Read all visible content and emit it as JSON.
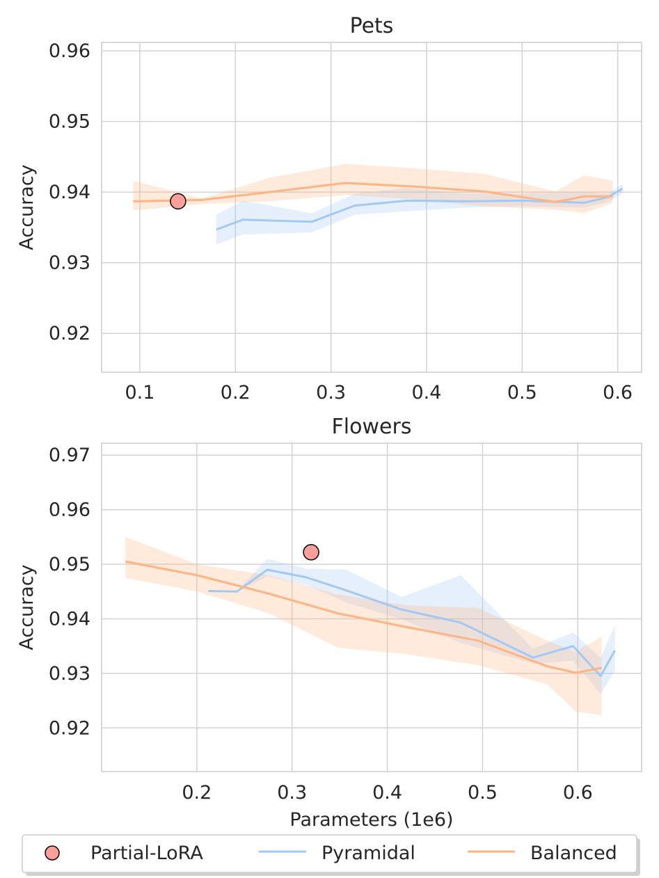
{
  "colors": {
    "pyramidal": "#a1c9f4",
    "balanced": "#ffb482",
    "partial_lora": "#ff9f9b",
    "grid": "#d3d3d3",
    "axes": "#cccccc",
    "text": "#262626"
  },
  "chart_data": [
    {
      "type": "line",
      "title": "Pets",
      "xlabel": "",
      "ylabel": "Accuracy",
      "xlim": [
        0.06,
        0.625
      ],
      "ylim": [
        0.9145,
        0.9612
      ],
      "xticks": [
        0.1,
        0.2,
        0.3,
        0.4,
        0.5,
        0.6
      ],
      "xtick_labels": [
        "0.1",
        "0.2",
        "0.3",
        "0.4",
        "0.5",
        "0.6"
      ],
      "yticks": [
        0.92,
        0.93,
        0.94,
        0.95,
        0.96
      ],
      "ytick_labels": [
        "0.92",
        "0.93",
        "0.94",
        "0.95",
        "0.96"
      ],
      "grid": true,
      "series": [
        {
          "name": "Pyramidal",
          "x": [
            0.18,
            0.208,
            0.28,
            0.325,
            0.38,
            0.44,
            0.5,
            0.565,
            0.59,
            0.605
          ],
          "y": [
            0.9347,
            0.9361,
            0.9358,
            0.9381,
            0.9388,
            0.9387,
            0.9388,
            0.9385,
            0.9393,
            0.9405
          ],
          "band_upper": [
            0.9368,
            0.9388,
            0.937,
            0.9398,
            0.9406,
            0.9398,
            0.9398,
            0.94,
            0.9398,
            0.9412
          ],
          "band_lower": [
            0.9326,
            0.934,
            0.9343,
            0.9368,
            0.9373,
            0.9378,
            0.938,
            0.9378,
            0.9386,
            0.9398
          ]
        },
        {
          "name": "Balanced",
          "x": [
            0.093,
            0.165,
            0.235,
            0.315,
            0.385,
            0.46,
            0.535,
            0.565,
            0.595
          ],
          "y": [
            0.9387,
            0.9389,
            0.94,
            0.9413,
            0.9408,
            0.9401,
            0.9386,
            0.9394,
            0.9394
          ],
          "band_upper": [
            0.9416,
            0.9391,
            0.942,
            0.944,
            0.9434,
            0.9426,
            0.9401,
            0.9424,
            0.9416
          ],
          "band_lower": [
            0.9374,
            0.9383,
            0.9387,
            0.9396,
            0.939,
            0.938,
            0.9375,
            0.937,
            0.9385
          ]
        }
      ],
      "points": [
        {
          "name": "Partial-LoRA",
          "x": 0.14,
          "y": 0.9387
        }
      ]
    },
    {
      "type": "line",
      "title": "Flowers",
      "xlabel": "Parameters (1e6)",
      "ylabel": "Accuracy",
      "xlim": [
        0.1,
        0.667
      ],
      "ylim": [
        0.912,
        0.9722
      ],
      "xticks": [
        0.2,
        0.3,
        0.4,
        0.5,
        0.6
      ],
      "xtick_labels": [
        "0.2",
        "0.3",
        "0.4",
        "0.5",
        "0.6"
      ],
      "yticks": [
        0.92,
        0.93,
        0.94,
        0.95,
        0.96,
        0.97
      ],
      "ytick_labels": [
        "0.92",
        "0.93",
        "0.94",
        "0.95",
        "0.96",
        "0.97"
      ],
      "grid": true,
      "series": [
        {
          "name": "Pyramidal",
          "x": [
            0.212,
            0.242,
            0.274,
            0.315,
            0.357,
            0.415,
            0.477,
            0.553,
            0.595,
            0.624,
            0.639
          ],
          "y": [
            0.9451,
            0.945,
            0.949,
            0.9476,
            0.9452,
            0.9417,
            0.9393,
            0.9329,
            0.935,
            0.9295,
            0.9342
          ],
          "band_upper": [
            0.9452,
            0.9451,
            0.951,
            0.9492,
            0.949,
            0.944,
            0.948,
            0.9345,
            0.9375,
            0.9328,
            0.9388
          ],
          "band_lower": [
            0.945,
            0.9449,
            0.9478,
            0.9462,
            0.943,
            0.9399,
            0.9356,
            0.9318,
            0.9323,
            0.9262,
            0.9305
          ]
        },
        {
          "name": "Balanced",
          "x": [
            0.125,
            0.2,
            0.276,
            0.348,
            0.42,
            0.495,
            0.568,
            0.598,
            0.625
          ],
          "y": [
            0.9505,
            0.948,
            0.9446,
            0.941,
            0.9385,
            0.936,
            0.9313,
            0.9301,
            0.931
          ],
          "band_upper": [
            0.955,
            0.95,
            0.948,
            0.9445,
            0.9425,
            0.942,
            0.936,
            0.934,
            0.9367
          ],
          "band_lower": [
            0.9475,
            0.945,
            0.941,
            0.9347,
            0.9335,
            0.9315,
            0.928,
            0.923,
            0.9223
          ]
        }
      ],
      "points": [
        {
          "name": "Partial-LoRA",
          "x": 0.32,
          "y": 0.9522
        }
      ]
    }
  ],
  "legend": {
    "position": "bottom",
    "items": [
      {
        "label": "Partial-LoRA",
        "marker": "circle"
      },
      {
        "label": "Pyramidal",
        "marker": "line"
      },
      {
        "label": "Balanced",
        "marker": "line"
      }
    ]
  }
}
